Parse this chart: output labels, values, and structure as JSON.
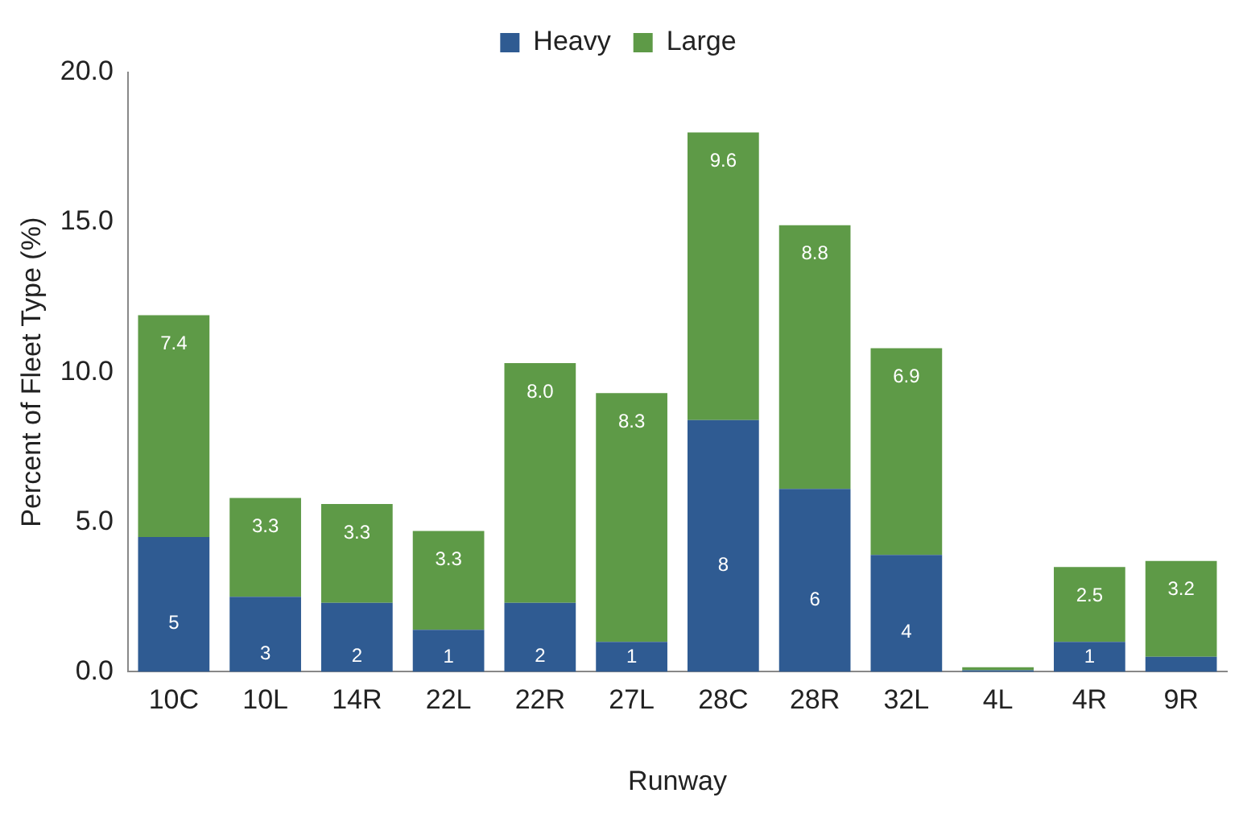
{
  "chart_data": {
    "type": "bar",
    "stacked": true,
    "xlabel": "Runway",
    "ylabel": "Percent of Fleet Type (%)",
    "categories": [
      "10C",
      "10L",
      "14R",
      "22L",
      "22R",
      "27L",
      "28C",
      "28R",
      "32L",
      "4L",
      "4R",
      "9R"
    ],
    "series": [
      {
        "name": "Heavy",
        "color": "#2f5b92",
        "values": [
          4.5,
          2.5,
          2.3,
          1.4,
          2.3,
          1.0,
          8.4,
          6.1,
          3.9,
          0.05,
          1.0,
          0.5
        ],
        "value_labels": [
          "5",
          "3",
          "2",
          "1",
          "2",
          "1",
          "8",
          "6",
          "4",
          null,
          "1",
          null
        ]
      },
      {
        "name": "Large",
        "color": "#5e9a47",
        "values": [
          7.4,
          3.3,
          3.3,
          3.3,
          8.0,
          8.3,
          9.6,
          8.8,
          6.9,
          0.1,
          2.5,
          3.2
        ],
        "value_labels": [
          "7.4",
          "3.3",
          "3.3",
          "3.3",
          "8.0",
          "8.3",
          "9.6",
          "8.8",
          "6.9",
          null,
          "2.5",
          "3.2"
        ]
      }
    ],
    "ylim": [
      0,
      20
    ],
    "yticks": [
      {
        "value": 0,
        "label": "0.0"
      },
      {
        "value": 5,
        "label": "5.0"
      },
      {
        "value": 10,
        "label": "10.0"
      },
      {
        "value": 15,
        "label": "15.0"
      },
      {
        "value": 20,
        "label": "20.0"
      }
    ],
    "grid": false,
    "legend": "top"
  }
}
